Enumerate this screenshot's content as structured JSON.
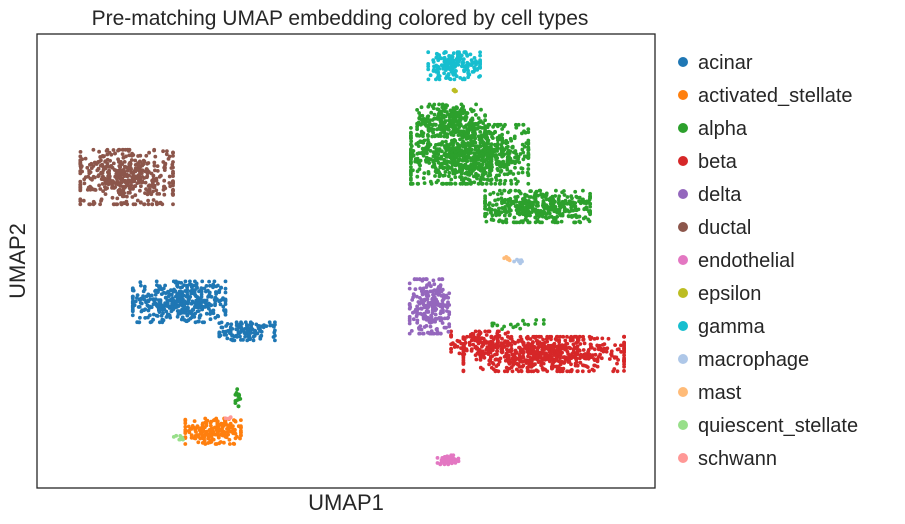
{
  "chart_data": {
    "type": "scatter",
    "title": "Pre-matching UMAP embedding colored by cell types",
    "xlabel": "UMAP1",
    "ylabel": "UMAP2",
    "xlim": [
      0,
      10
    ],
    "ylim": [
      0,
      10
    ],
    "grid": false,
    "ticks": false,
    "legend_position": "right",
    "series": [
      {
        "name": "acinar",
        "color": "#1f77b4",
        "clusters": [
          {
            "cx": 2.3,
            "cy": 4.1,
            "rx": 0.75,
            "ry": 0.45,
            "n": 420
          },
          {
            "cx": 3.4,
            "cy": 3.45,
            "rx": 0.45,
            "ry": 0.2,
            "n": 130
          }
        ]
      },
      {
        "name": "activated_stellate",
        "color": "#ff7f0e",
        "clusters": [
          {
            "cx": 2.85,
            "cy": 1.25,
            "rx": 0.45,
            "ry": 0.28,
            "n": 180
          }
        ]
      },
      {
        "name": "alpha",
        "color": "#2ca02c",
        "clusters": [
          {
            "cx": 7.0,
            "cy": 7.35,
            "rx": 0.95,
            "ry": 0.65,
            "n": 900
          },
          {
            "cx": 8.1,
            "cy": 6.2,
            "rx": 0.85,
            "ry": 0.35,
            "n": 420
          },
          {
            "cx": 6.7,
            "cy": 8.1,
            "rx": 0.55,
            "ry": 0.35,
            "n": 250
          },
          {
            "cx": 3.25,
            "cy": 2.0,
            "rx": 0.04,
            "ry": 0.2,
            "n": 14
          },
          {
            "cx": 7.7,
            "cy": 3.6,
            "rx": 0.5,
            "ry": 0.1,
            "n": 18
          }
        ]
      },
      {
        "name": "beta",
        "color": "#d62728",
        "clusters": [
          {
            "cx": 8.2,
            "cy": 2.95,
            "rx": 1.3,
            "ry": 0.38,
            "n": 650
          },
          {
            "cx": 7.2,
            "cy": 3.2,
            "rx": 0.5,
            "ry": 0.25,
            "n": 120
          }
        ]
      },
      {
        "name": "delta",
        "color": "#9467bd",
        "clusters": [
          {
            "cx": 6.35,
            "cy": 4.0,
            "rx": 0.32,
            "ry": 0.6,
            "n": 230
          }
        ]
      },
      {
        "name": "ductal",
        "color": "#8c564b",
        "clusters": [
          {
            "cx": 1.45,
            "cy": 6.85,
            "rx": 0.75,
            "ry": 0.6,
            "n": 460
          }
        ]
      },
      {
        "name": "endothelial",
        "color": "#e377c2",
        "clusters": [
          {
            "cx": 6.65,
            "cy": 0.62,
            "rx": 0.17,
            "ry": 0.1,
            "n": 40
          }
        ]
      },
      {
        "name": "epsilon",
        "color": "#bcbd22",
        "clusters": [
          {
            "cx": 6.78,
            "cy": 8.75,
            "rx": 0.04,
            "ry": 0.05,
            "n": 6
          }
        ]
      },
      {
        "name": "gamma",
        "color": "#17becf",
        "clusters": [
          {
            "cx": 6.75,
            "cy": 9.3,
            "rx": 0.42,
            "ry": 0.3,
            "n": 180
          }
        ]
      },
      {
        "name": "macrophage",
        "color": "#aec7e8",
        "clusters": [
          {
            "cx": 7.8,
            "cy": 5.0,
            "rx": 0.08,
            "ry": 0.05,
            "n": 7
          }
        ]
      },
      {
        "name": "mast",
        "color": "#ffbb78",
        "clusters": [
          {
            "cx": 7.6,
            "cy": 5.05,
            "rx": 0.05,
            "ry": 0.05,
            "n": 6
          }
        ]
      },
      {
        "name": "quiescent_stellate",
        "color": "#98df8a",
        "clusters": [
          {
            "cx": 2.3,
            "cy": 1.1,
            "rx": 0.1,
            "ry": 0.05,
            "n": 8
          }
        ]
      },
      {
        "name": "schwann",
        "color": "#ff9896",
        "clusters": [
          {
            "cx": 3.1,
            "cy": 1.55,
            "rx": 0.05,
            "ry": 0.04,
            "n": 4
          }
        ]
      }
    ]
  }
}
